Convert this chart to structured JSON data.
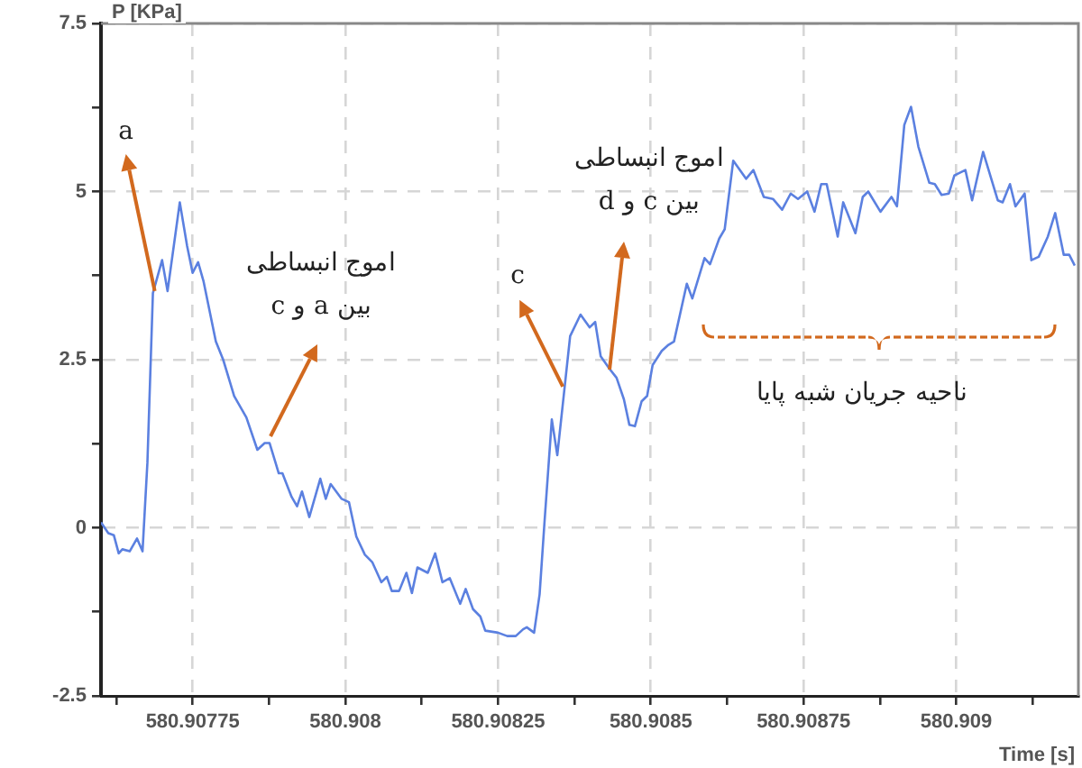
{
  "chart_data": {
    "type": "line",
    "xlabel": "Time [s]",
    "ylabel": "P [KPa]",
    "xlim": [
      580.9076,
      580.9092
    ],
    "ylim": [
      -2.5,
      7.5
    ],
    "xticks": [
      {
        "value": 580.907625,
        "label": null
      },
      580.90775,
      {
        "value": 580.907875,
        "label": null
      },
      580.908,
      {
        "value": 580.908125,
        "label": null
      },
      580.90825,
      {
        "value": 580.908375,
        "label": null
      },
      580.9085,
      {
        "value": 580.908625,
        "label": null
      },
      580.90875,
      {
        "value": 580.908875,
        "label": null
      },
      580.909,
      {
        "value": 580.909125,
        "label": null
      }
    ],
    "yticks": [
      -2.5,
      {
        "value": -1.25,
        "label": null
      },
      0,
      {
        "value": 1.25,
        "label": null
      },
      2.5,
      {
        "value": 3.75,
        "label": null
      },
      5,
      {
        "value": 6.25,
        "label": null
      },
      7.5
    ],
    "grid": true,
    "legend": false,
    "marker": "none",
    "line_style": "solid",
    "annotations": [
      {
        "text": "a",
        "x": 580.907688,
        "y": 3.52
      },
      "اموج انبساطی\nبین a و c",
      {
        "text": "c",
        "x": 580.908356,
        "y": 2.1
      },
      "اموج انبساطی\nبین c و d",
      "ناحیه جریان شبه پایا"
    ],
    "series": [
      {
        "color": "#5b80e0",
        "x": [
          580.9076,
          580.907612,
          580.907621,
          580.907629,
          580.907635,
          580.907647,
          580.907659,
          580.907668,
          580.907676,
          580.907685,
          580.9077,
          580.907709,
          580.907729,
          580.907741,
          580.90775,
          580.907759,
          580.907768,
          580.907788,
          580.9078,
          580.907818,
          580.907838,
          580.907856,
          580.907868,
          580.907876,
          580.907891,
          580.907897,
          580.907912,
          580.907921,
          580.907929,
          580.907941,
          580.907959,
          580.907968,
          580.907976,
          580.907994,
          580.908006,
          580.908018,
          580.908032,
          580.908044,
          580.908059,
          580.908068,
          580.908076,
          580.908088,
          580.9081,
          580.908109,
          580.908118,
          580.908135,
          580.908147,
          580.908159,
          580.908171,
          580.908188,
          580.908197,
          580.908209,
          580.908221,
          580.908229,
          580.90825,
          580.908265,
          580.908279,
          580.908291,
          580.908297,
          580.908309,
          580.908318,
          580.908326,
          580.908338,
          580.908347,
          580.908368,
          580.908385,
          580.9084,
          580.908409,
          580.908418,
          580.908432,
          580.908444,
          580.908456,
          580.908465,
          580.908474,
          580.908485,
          580.908494,
          580.908503,
          580.908518,
          580.908529,
          580.908538,
          580.908559,
          580.908568,
          580.908588,
          580.908597,
          580.908612,
          580.908621,
          580.908635,
          580.908656,
          580.908668,
          580.908685,
          580.9087,
          580.908715,
          580.908729,
          580.908741,
          580.908756,
          580.908768,
          580.908779,
          580.908788,
          580.908806,
          580.908815,
          580.908835,
          580.908847,
          580.908856,
          580.908876,
          580.908894,
          580.908903,
          580.908915,
          580.908926,
          580.908938,
          580.908956,
          580.908965,
          580.908976,
          580.908988,
          580.908997,
          580.909015,
          580.909026,
          580.909044,
          580.909068,
          580.909076,
          580.909088,
          580.909097,
          580.909112,
          580.909123,
          580.909135,
          580.90915,
          580.909162,
          580.909176,
          580.909185,
          580.909194
        ],
        "values": [
          0.08,
          -0.08,
          -0.11,
          -0.38,
          -0.32,
          -0.35,
          -0.16,
          -0.35,
          0.97,
          3.49,
          3.98,
          3.52,
          4.84,
          4.19,
          3.79,
          3.95,
          3.66,
          2.77,
          2.5,
          1.96,
          1.64,
          1.16,
          1.26,
          1.26,
          0.81,
          0.81,
          0.46,
          0.32,
          0.54,
          0.16,
          0.73,
          0.43,
          0.65,
          0.43,
          0.38,
          -0.13,
          -0.4,
          -0.51,
          -0.81,
          -0.73,
          -0.94,
          -0.94,
          -0.67,
          -0.97,
          -0.59,
          -0.67,
          -0.38,
          -0.81,
          -0.75,
          -1.13,
          -0.91,
          -1.21,
          -1.32,
          -1.53,
          -1.56,
          -1.61,
          -1.61,
          -1.51,
          -1.48,
          -1.56,
          -0.99,
          0.08,
          1.61,
          1.08,
          2.85,
          3.17,
          2.98,
          3.06,
          2.55,
          2.37,
          2.23,
          1.91,
          1.53,
          1.51,
          1.88,
          1.96,
          2.42,
          2.63,
          2.72,
          2.77,
          3.63,
          3.41,
          4.01,
          3.92,
          4.3,
          4.44,
          5.46,
          5.19,
          5.32,
          4.92,
          4.89,
          4.73,
          4.97,
          4.89,
          5.0,
          4.7,
          5.11,
          5.11,
          4.33,
          4.84,
          4.38,
          4.92,
          5.0,
          4.7,
          4.92,
          4.78,
          5.99,
          6.26,
          5.67,
          5.13,
          5.11,
          4.95,
          4.97,
          5.24,
          5.32,
          4.87,
          5.59,
          4.87,
          4.84,
          5.11,
          4.78,
          4.97,
          3.98,
          4.03,
          4.33,
          4.68,
          4.06,
          4.06,
          3.9
        ]
      }
    ]
  }
}
